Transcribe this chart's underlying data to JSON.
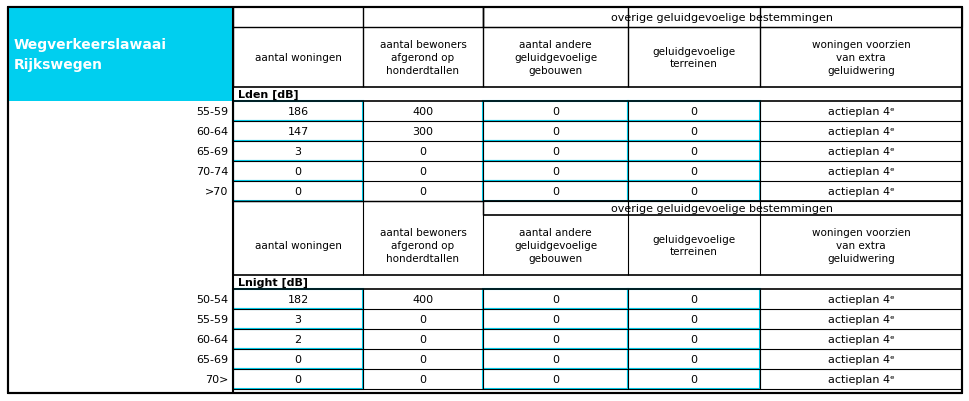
{
  "header_top": "overige geluidgevoelige bestemmingen",
  "col_headers": [
    "aantal woningen",
    "aantal bewoners\nafgerond op\nhonderdtallen",
    "aantal andere\ngeluidgevoelige\ngebouwen",
    "geluidgevoelige\nterreinen",
    "woningen voorzien\nvan extra\ngeluidwering"
  ],
  "section1_label": "Lden [dB]",
  "section1_rows": [
    [
      "55-59",
      "186",
      "400",
      "0",
      "0",
      "actieplan 4ᵉ"
    ],
    [
      "60-64",
      "147",
      "300",
      "0",
      "0",
      "actieplan 4ᵉ"
    ],
    [
      "65-69",
      "3",
      "0",
      "0",
      "0",
      "actieplan 4ᵉ"
    ],
    [
      "70-74",
      "0",
      "0",
      "0",
      "0",
      "actieplan 4ᵉ"
    ],
    [
      ">70",
      "0",
      "0",
      "0",
      "0",
      "actieplan 4ᵉ"
    ]
  ],
  "section2_label": "Lnight [dB]",
  "section2_rows": [
    [
      "50-54",
      "182",
      "400",
      "0",
      "0",
      "actieplan 4ᵉ"
    ],
    [
      "55-59",
      "3",
      "0",
      "0",
      "0",
      "actieplan 4ᵉ"
    ],
    [
      "60-64",
      "2",
      "0",
      "0",
      "0",
      "actieplan 4ᵉ"
    ],
    [
      "65-69",
      "0",
      "0",
      "0",
      "0",
      "actieplan 4ᵉ"
    ],
    [
      "70>",
      "0",
      "0",
      "0",
      "0",
      "actieplan 4ᵉ"
    ]
  ],
  "mid_header": "overige geluidgevoelige bestemmingen",
  "title_line1": "Wegverkeerslawaai",
  "title_line2": "Rijkswegen",
  "cyan": "#00CFEF",
  "white": "#FFFFFF",
  "black": "#000000"
}
